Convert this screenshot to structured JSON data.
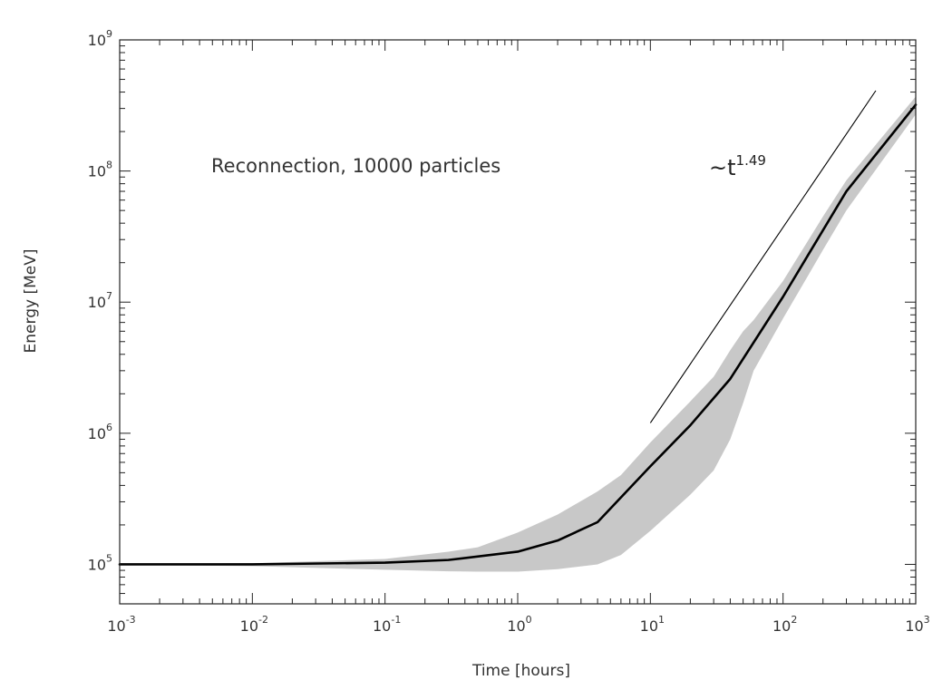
{
  "chart_data": {
    "type": "line",
    "xlabel": "Time [hours]",
    "ylabel": "Energy [MeV]",
    "xscale": "log",
    "yscale": "log",
    "xlim": [
      0.001,
      1000
    ],
    "ylim": [
      50000,
      1000000000
    ],
    "xticks": [
      {
        "base": "10",
        "exp": "-3",
        "value": 0.001
      },
      {
        "base": "10",
        "exp": "-2",
        "value": 0.01
      },
      {
        "base": "10",
        "exp": "-1",
        "value": 0.1
      },
      {
        "base": "10",
        "exp": "0",
        "value": 1
      },
      {
        "base": "10",
        "exp": "1",
        "value": 10
      },
      {
        "base": "10",
        "exp": "2",
        "value": 100
      },
      {
        "base": "10",
        "exp": "3",
        "value": 1000
      }
    ],
    "yticks": [
      {
        "base": "10",
        "exp": "5",
        "value": 100000
      },
      {
        "base": "10",
        "exp": "6",
        "value": 1000000
      },
      {
        "base": "10",
        "exp": "7",
        "value": 10000000
      },
      {
        "base": "10",
        "exp": "8",
        "value": 100000000
      },
      {
        "base": "10",
        "exp": "9",
        "value": 1000000000
      }
    ],
    "annotation": "Reconnection, 10000 particles",
    "mean_curve": {
      "x": [
        0.001,
        0.01,
        0.1,
        0.3,
        1,
        2,
        4,
        10,
        20,
        40,
        100,
        300,
        1000
      ],
      "y": [
        100000,
        100100,
        103000,
        108000,
        125000,
        152000,
        210000,
        560000,
        1150000,
        2600000,
        11000000,
        70000000,
        320000000
      ]
    },
    "spread_band": {
      "x": [
        0.001,
        0.01,
        0.1,
        0.3,
        0.5,
        1,
        2,
        4,
        6,
        10,
        20,
        30,
        40,
        50,
        60,
        100,
        200,
        300,
        1000
      ],
      "upper": [
        100000,
        102000,
        110000,
        125000,
        135000,
        175000,
        240000,
        360000,
        480000,
        850000,
        1750000,
        2700000,
        4300000,
        6000000,
        7300000,
        14500000,
        45000000,
        85000000,
        370000000
      ],
      "lower": [
        99000,
        97000,
        91000,
        88500,
        88000,
        88000,
        92000,
        100000,
        118000,
        180000,
        340000,
        520000,
        900000,
        1700000,
        3000000,
        7500000,
        25000000,
        50000000,
        270000000
      ]
    },
    "power_law_guide": {
      "label_base": "~t",
      "label_exponent": "1.49",
      "exponent": 1.49,
      "x": [
        10,
        500
      ],
      "y": [
        1200000,
        410000000
      ]
    },
    "colors": {
      "band": "#c8c8c8",
      "mean_line": "#000000",
      "guide_line": "#000000",
      "axes": "#222222"
    }
  }
}
